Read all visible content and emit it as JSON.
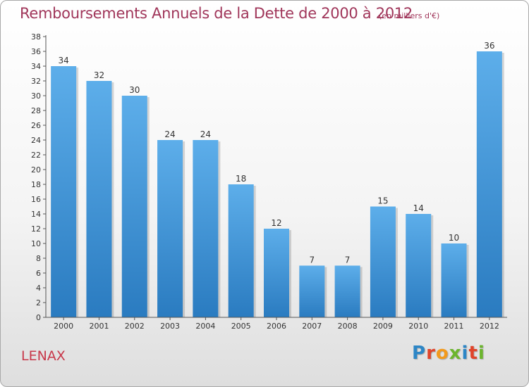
{
  "header": {
    "title": "Remboursements Annuels de la Dette de 2000 à 2012",
    "subtitle": "(en milliers d'€)"
  },
  "footer": {
    "place": "LENAX",
    "logo_text": "Proxiti"
  },
  "colors": {
    "title": "#a0365a",
    "place": "#c8384a",
    "bar_top": "#5daeea",
    "bar_bottom": "#2a7bc0",
    "logo_letters": [
      "#2d86c6",
      "#e0442a",
      "#f29a1d",
      "#6cb52e",
      "#2d86c6",
      "#e0442a",
      "#6cb52e"
    ]
  },
  "chart_data": {
    "type": "bar",
    "title": "Remboursements Annuels de la Dette de 2000 à 2012",
    "subtitle": "(en milliers d'€)",
    "categories": [
      "2000",
      "2001",
      "2002",
      "2003",
      "2004",
      "2005",
      "2006",
      "2007",
      "2008",
      "2009",
      "2010",
      "2011",
      "2012"
    ],
    "values": [
      34,
      32,
      30,
      24,
      24,
      18,
      12,
      7,
      7,
      15,
      14,
      10,
      36
    ],
    "ylim": [
      0,
      38
    ],
    "ytick_step": 2,
    "grid": false,
    "data_labels": true
  }
}
